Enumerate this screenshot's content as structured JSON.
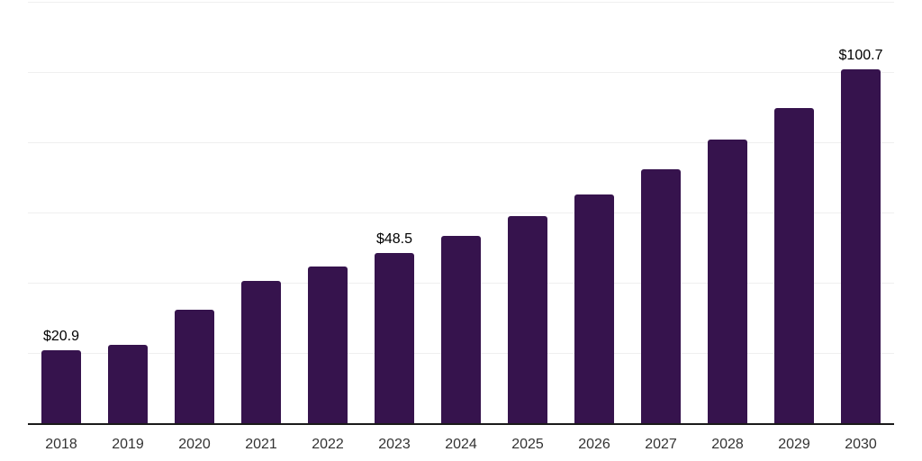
{
  "chart_data": {
    "type": "bar",
    "title": "",
    "xlabel": "",
    "ylabel": "",
    "ylim": [
      0,
      120
    ],
    "gridline_values": [
      20,
      40,
      60,
      80,
      100,
      120
    ],
    "grid": true,
    "legend": false,
    "value_prefix": "$",
    "bar_color": "#36134d",
    "gridline_color": "#efefef",
    "axis_line_color": "#1a1a1a",
    "value_label_color": "#000000",
    "tick_label_color": "#333333",
    "categories": [
      "2018",
      "2019",
      "2020",
      "2021",
      "2022",
      "2023",
      "2024",
      "2025",
      "2026",
      "2027",
      "2028",
      "2029",
      "2030"
    ],
    "values": [
      20.9,
      22.4,
      32.2,
      40.6,
      44.5,
      48.5,
      53.3,
      58.9,
      65.1,
      72.2,
      80.9,
      89.7,
      100.7
    ],
    "points": [
      {
        "year": "2018",
        "value": 20.9,
        "value_label": "$20.9"
      },
      {
        "year": "2019",
        "value": 22.4,
        "value_label": null
      },
      {
        "year": "2020",
        "value": 32.2,
        "value_label": null
      },
      {
        "year": "2021",
        "value": 40.6,
        "value_label": null
      },
      {
        "year": "2022",
        "value": 44.5,
        "value_label": null
      },
      {
        "year": "2023",
        "value": 48.5,
        "value_label": "$48.5"
      },
      {
        "year": "2024",
        "value": 53.3,
        "value_label": null
      },
      {
        "year": "2025",
        "value": 58.9,
        "value_label": null
      },
      {
        "year": "2026",
        "value": 65.1,
        "value_label": null
      },
      {
        "year": "2027",
        "value": 72.2,
        "value_label": null
      },
      {
        "year": "2028",
        "value": 80.9,
        "value_label": null
      },
      {
        "year": "2029",
        "value": 89.7,
        "value_label": null
      },
      {
        "year": "2030",
        "value": 100.7,
        "value_label": "$100.7"
      }
    ]
  }
}
